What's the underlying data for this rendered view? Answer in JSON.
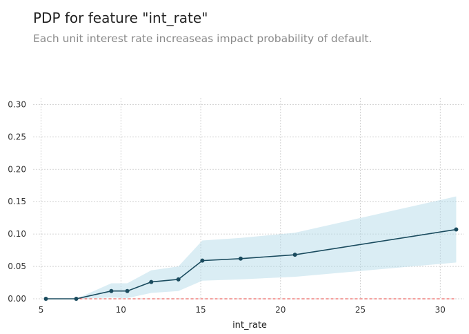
{
  "title": "PDP for feature \"int_rate\"",
  "subtitle": "Each unit interest rate increaseas impact probability of default.",
  "chart_data": {
    "type": "line",
    "xlabel": "int_rate",
    "ylabel": "",
    "xlim": [
      4.5,
      31.5
    ],
    "ylim": [
      0,
      0.31
    ],
    "grid": true,
    "x_ticks": [
      5,
      10,
      15,
      20,
      25,
      30
    ],
    "y_ticks": [
      0.0,
      0.05,
      0.1,
      0.15,
      0.2,
      0.25,
      0.3
    ],
    "x_tick_labels": [
      "5",
      "10",
      "15",
      "20",
      "25",
      "30"
    ],
    "y_tick_labels": [
      "0.00",
      "0.05",
      "0.10",
      "0.15",
      "0.20",
      "0.25",
      "0.30"
    ],
    "series": [
      {
        "x": [
          5.3,
          7.2,
          9.4,
          10.4,
          11.9,
          13.6,
          15.1,
          17.5,
          20.9,
          31.0
        ],
        "values": [
          0.0,
          0.0,
          0.012,
          0.012,
          0.026,
          0.03,
          0.059,
          0.062,
          0.068,
          0.107
        ],
        "upper": [
          0.0,
          0.0,
          0.024,
          0.024,
          0.044,
          0.05,
          0.09,
          0.094,
          0.102,
          0.158
        ],
        "lower": [
          0.0,
          0.0,
          0.002,
          0.001,
          0.009,
          0.012,
          0.028,
          0.03,
          0.034,
          0.056
        ],
        "color": "#1a4b5e",
        "band_color": "#add8e6"
      }
    ],
    "baseline": {
      "value": 0,
      "color": "#e8423c",
      "style": "dashed"
    }
  }
}
